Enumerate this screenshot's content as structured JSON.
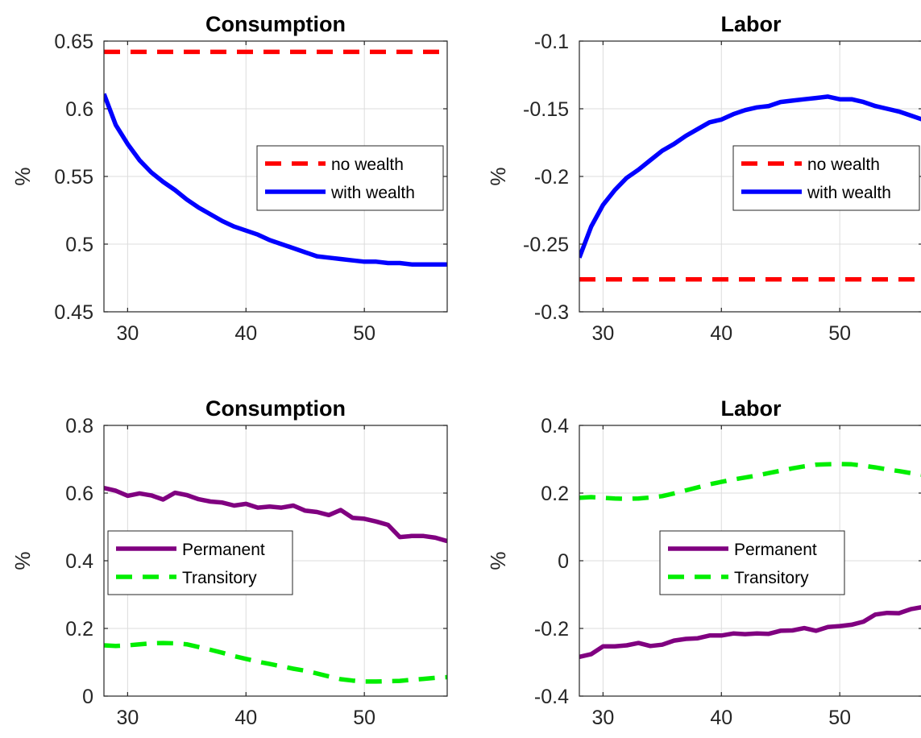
{
  "chart_data": [
    {
      "type": "line",
      "title": "Consumption",
      "ylabel": "%",
      "xlim": [
        28,
        57
      ],
      "ylim": [
        0.45,
        0.65
      ],
      "xticks": [
        "30",
        "40",
        "50"
      ],
      "yticks": [
        "0.45",
        "0.5",
        "0.55",
        "0.6",
        "0.65"
      ],
      "grid": true,
      "legend": "center-right",
      "series": [
        {
          "name": "no wealth",
          "color": "#ff0000",
          "style": "dashed",
          "x": [
            28,
            57
          ],
          "y": [
            0.642,
            0.642
          ]
        },
        {
          "name": "with wealth",
          "color": "#0000ff",
          "style": "solid",
          "x": [
            28,
            29,
            30,
            31,
            32,
            33,
            34,
            35,
            36,
            37,
            38,
            39,
            40,
            41,
            42,
            43,
            44,
            45,
            46,
            47,
            48,
            49,
            50,
            51,
            52,
            53,
            54,
            55,
            56,
            57
          ],
          "y": [
            0.611,
            0.588,
            0.574,
            0.562,
            0.553,
            0.546,
            0.54,
            0.533,
            0.527,
            0.522,
            0.517,
            0.513,
            0.51,
            0.507,
            0.503,
            0.5,
            0.497,
            0.494,
            0.491,
            0.49,
            0.489,
            0.488,
            0.487,
            0.487,
            0.486,
            0.486,
            0.485,
            0.485,
            0.485,
            0.485
          ]
        }
      ]
    },
    {
      "type": "line",
      "title": "Labor",
      "ylabel": "%",
      "xlim": [
        28,
        57
      ],
      "ylim": [
        -0.3,
        -0.1
      ],
      "xticks": [
        "30",
        "40",
        "50"
      ],
      "yticks": [
        "-0.3",
        "-0.25",
        "-0.2",
        "-0.15",
        "-0.1"
      ],
      "grid": true,
      "legend": "center-right",
      "series": [
        {
          "name": "no wealth",
          "color": "#ff0000",
          "style": "dashed",
          "x": [
            28,
            57
          ],
          "y": [
            -0.276,
            -0.276
          ]
        },
        {
          "name": "with wealth",
          "color": "#0000ff",
          "style": "solid",
          "x": [
            28,
            29,
            30,
            31,
            32,
            33,
            34,
            35,
            36,
            37,
            38,
            39,
            40,
            41,
            42,
            43,
            44,
            45,
            46,
            47,
            48,
            49,
            50,
            51,
            52,
            53,
            54,
            55,
            56,
            57
          ],
          "y": [
            -0.26,
            -0.237,
            -0.221,
            -0.21,
            -0.201,
            -0.195,
            -0.188,
            -0.181,
            -0.176,
            -0.17,
            -0.165,
            -0.16,
            -0.158,
            -0.154,
            -0.151,
            -0.149,
            -0.148,
            -0.145,
            -0.144,
            -0.143,
            -0.142,
            -0.141,
            -0.143,
            -0.143,
            -0.145,
            -0.148,
            -0.15,
            -0.152,
            -0.155,
            -0.158
          ]
        }
      ]
    },
    {
      "type": "line",
      "title": "Consumption",
      "ylabel": "%",
      "xlim": [
        28,
        57
      ],
      "ylim": [
        0,
        0.8
      ],
      "xticks": [
        "30",
        "40",
        "50"
      ],
      "yticks": [
        "0",
        "0.2",
        "0.4",
        "0.6",
        "0.8"
      ],
      "grid": true,
      "legend": "center-left",
      "series": [
        {
          "name": "Permanent",
          "color": "#800080",
          "style": "solid",
          "x": [
            28,
            29,
            30,
            31,
            32,
            33,
            34,
            35,
            36,
            37,
            38,
            39,
            40,
            41,
            42,
            43,
            44,
            45,
            46,
            47,
            48,
            49,
            50,
            51,
            52,
            53,
            54,
            55,
            56,
            57
          ],
          "y": [
            0.615,
            0.607,
            0.592,
            0.599,
            0.593,
            0.581,
            0.601,
            0.594,
            0.582,
            0.575,
            0.572,
            0.563,
            0.568,
            0.557,
            0.56,
            0.557,
            0.563,
            0.548,
            0.544,
            0.535,
            0.55,
            0.527,
            0.524,
            0.516,
            0.506,
            0.47,
            0.473,
            0.473,
            0.468,
            0.458
          ]
        },
        {
          "name": "Transitory",
          "color": "#00ee00",
          "style": "dashed",
          "x": [
            28,
            29,
            30,
            31,
            32,
            33,
            34,
            35,
            36,
            37,
            38,
            39,
            40,
            41,
            42,
            43,
            44,
            45,
            46,
            47,
            48,
            49,
            50,
            51,
            52,
            53,
            54,
            55,
            56,
            57
          ],
          "y": [
            0.15,
            0.148,
            0.15,
            0.153,
            0.156,
            0.157,
            0.156,
            0.153,
            0.145,
            0.137,
            0.128,
            0.118,
            0.11,
            0.102,
            0.095,
            0.088,
            0.081,
            0.075,
            0.067,
            0.058,
            0.05,
            0.046,
            0.043,
            0.043,
            0.044,
            0.045,
            0.048,
            0.051,
            0.054,
            0.056
          ]
        }
      ]
    },
    {
      "type": "line",
      "title": "Labor",
      "ylabel": "%",
      "xlim": [
        28,
        57
      ],
      "ylim": [
        -0.4,
        0.4
      ],
      "xticks": [
        "30",
        "40",
        "50"
      ],
      "yticks": [
        "-0.4",
        "-0.2",
        "0",
        "0.2",
        "0.4"
      ],
      "grid": true,
      "legend": "center",
      "series": [
        {
          "name": "Permanent",
          "color": "#800080",
          "style": "solid",
          "x": [
            28,
            29,
            30,
            31,
            32,
            33,
            34,
            35,
            36,
            37,
            38,
            39,
            40,
            41,
            42,
            43,
            44,
            45,
            46,
            47,
            48,
            49,
            50,
            51,
            52,
            53,
            54,
            55,
            56,
            57
          ],
          "y": [
            -0.284,
            -0.276,
            -0.253,
            -0.253,
            -0.25,
            -0.243,
            -0.252,
            -0.248,
            -0.236,
            -0.231,
            -0.229,
            -0.221,
            -0.221,
            -0.215,
            -0.217,
            -0.215,
            -0.216,
            -0.207,
            -0.206,
            -0.199,
            -0.207,
            -0.196,
            -0.193,
            -0.189,
            -0.18,
            -0.159,
            -0.154,
            -0.155,
            -0.143,
            -0.137
          ]
        },
        {
          "name": "Transitory",
          "color": "#00ee00",
          "style": "dashed",
          "x": [
            28,
            29,
            30,
            31,
            32,
            33,
            34,
            35,
            36,
            37,
            38,
            39,
            40,
            41,
            42,
            43,
            44,
            45,
            46,
            47,
            48,
            49,
            50,
            51,
            52,
            53,
            54,
            55,
            56,
            57
          ],
          "y": [
            0.186,
            0.188,
            0.186,
            0.184,
            0.183,
            0.184,
            0.187,
            0.191,
            0.199,
            0.208,
            0.217,
            0.226,
            0.233,
            0.24,
            0.246,
            0.252,
            0.259,
            0.266,
            0.273,
            0.279,
            0.284,
            0.285,
            0.286,
            0.285,
            0.281,
            0.276,
            0.27,
            0.265,
            0.259,
            0.254
          ]
        }
      ]
    }
  ]
}
